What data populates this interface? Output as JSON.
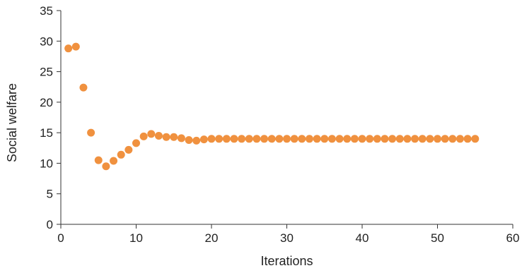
{
  "chart_data": {
    "type": "scatter",
    "title": "",
    "xlabel": "Iterations",
    "ylabel": "Social welfare",
    "xlim": [
      0,
      60
    ],
    "ylim": [
      0,
      35
    ],
    "xticks": [
      0,
      10,
      20,
      30,
      40,
      50,
      60
    ],
    "yticks": [
      0,
      5,
      10,
      15,
      20,
      25,
      30,
      35
    ],
    "grid": false,
    "legend": "none",
    "marker_color": "#F0913F",
    "axis_color": "#333333",
    "series": [
      {
        "x": [
          1,
          2,
          3,
          4,
          5,
          6,
          7,
          8,
          9,
          10,
          11,
          12,
          13,
          14,
          15,
          16,
          17,
          18,
          19,
          20,
          21,
          22,
          23,
          24,
          25,
          26,
          27,
          28,
          29,
          30,
          31,
          32,
          33,
          34,
          35,
          36,
          37,
          38,
          39,
          40,
          41,
          42,
          43,
          44,
          45,
          46,
          47,
          48,
          49,
          50,
          51,
          52,
          53,
          54,
          55
        ],
        "y": [
          28.8,
          29.1,
          22.4,
          15.0,
          10.5,
          9.5,
          10.4,
          11.4,
          12.2,
          13.3,
          14.4,
          14.8,
          14.5,
          14.3,
          14.3,
          14.1,
          13.8,
          13.7,
          13.9,
          14.0,
          14.0,
          14.0,
          14.0,
          14.0,
          14.0,
          14.0,
          14.0,
          14.0,
          14.0,
          14.0,
          14.0,
          14.0,
          14.0,
          14.0,
          14.0,
          14.0,
          14.0,
          14.0,
          14.0,
          14.0,
          14.0,
          14.0,
          14.0,
          14.0,
          14.0,
          14.0,
          14.0,
          14.0,
          14.0,
          14.0,
          14.0,
          14.0,
          14.0,
          14.0,
          14.0
        ]
      }
    ]
  }
}
